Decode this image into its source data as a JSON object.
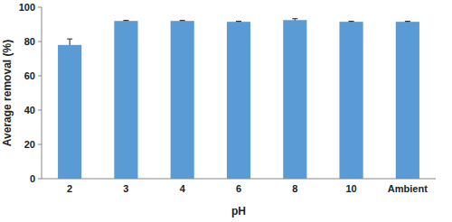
{
  "chart_data": {
    "type": "bar",
    "x_label": "pH",
    "y_label": "Average removal (%)",
    "categories": [
      "2",
      "3",
      "4",
      "6",
      "8",
      "10",
      "Ambient"
    ],
    "values": [
      78,
      92,
      92,
      91.5,
      92.5,
      91.5,
      91.5
    ],
    "errors": [
      3.5,
      0.3,
      0.3,
      0.3,
      0.8,
      0.3,
      0.3
    ],
    "color": "#5b9bd5",
    "ylim": [
      0,
      100
    ],
    "yticks": [
      0,
      20,
      40,
      60,
      80,
      100
    ],
    "grid": false
  }
}
